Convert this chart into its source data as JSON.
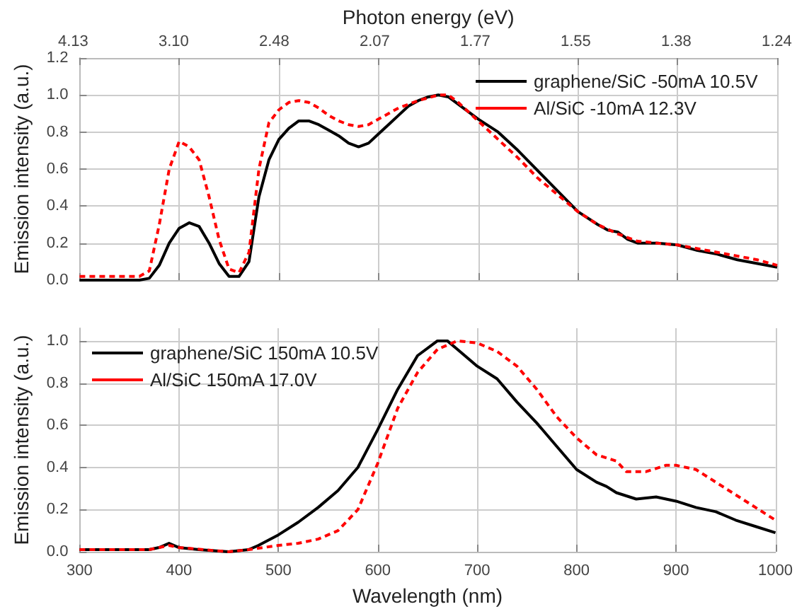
{
  "chart_data": [
    {
      "type": "line",
      "ylabel": "Emission intensity (a.u.)",
      "x2label": "Photon energy (eV)",
      "xlim": [
        300,
        1000
      ],
      "xticks": [
        300,
        400,
        500,
        600,
        700,
        800,
        900,
        1000
      ],
      "annotations": [
        "4.13",
        "3.10",
        "2.48",
        "2.07",
        "1.77",
        "1.55",
        "1.38",
        "1.24"
      ],
      "ylim": [
        0,
        1.2
      ],
      "yticks": [
        {
          "value": 0,
          "label": "0.0"
        },
        {
          "value": 0.2,
          "label": "0.2"
        },
        {
          "value": 0.4,
          "label": "0.4"
        },
        {
          "value": 0.6,
          "label": "0.6"
        },
        {
          "value": 0.8,
          "label": "0.8"
        },
        {
          "value": 1,
          "label": "1.0"
        },
        {
          "value": 1.2,
          "label": "1.2"
        }
      ],
      "tick_labels": "y",
      "grid": true,
      "legend": "top right",
      "marker": "none",
      "series": [
        {
          "name": "graphene/SiC -50mA 10.5V",
          "color": "#000000",
          "line_style": "solid",
          "x": [
            300,
            330,
            360,
            370,
            380,
            390,
            400,
            410,
            420,
            430,
            440,
            450,
            460,
            470,
            480,
            490,
            500,
            510,
            520,
            530,
            540,
            550,
            560,
            570,
            580,
            590,
            600,
            610,
            620,
            630,
            640,
            650,
            660,
            670,
            680,
            690,
            700,
            720,
            740,
            760,
            780,
            800,
            820,
            830,
            840,
            850,
            860,
            880,
            900,
            920,
            940,
            960,
            980,
            1000
          ],
          "values": [
            0.0,
            0.0,
            0.0,
            0.01,
            0.08,
            0.2,
            0.28,
            0.31,
            0.29,
            0.2,
            0.09,
            0.02,
            0.02,
            0.1,
            0.45,
            0.65,
            0.76,
            0.82,
            0.86,
            0.86,
            0.84,
            0.81,
            0.78,
            0.74,
            0.72,
            0.74,
            0.79,
            0.84,
            0.89,
            0.94,
            0.97,
            0.99,
            1.0,
            0.99,
            0.95,
            0.91,
            0.87,
            0.8,
            0.7,
            0.59,
            0.48,
            0.37,
            0.3,
            0.27,
            0.26,
            0.22,
            0.2,
            0.2,
            0.19,
            0.16,
            0.14,
            0.11,
            0.09,
            0.07
          ]
        },
        {
          "name": "Al/SiC -10mA 12.3V",
          "color": "#ff0000",
          "line_style": "dashed",
          "x": [
            300,
            330,
            360,
            370,
            380,
            390,
            400,
            410,
            420,
            430,
            440,
            450,
            460,
            470,
            480,
            490,
            500,
            510,
            520,
            530,
            540,
            550,
            560,
            570,
            580,
            590,
            600,
            620,
            640,
            660,
            670,
            680,
            700,
            720,
            740,
            760,
            780,
            800,
            820,
            840,
            860,
            880,
            900,
            920,
            940,
            960,
            980,
            1000
          ],
          "values": [
            0.02,
            0.02,
            0.02,
            0.05,
            0.3,
            0.6,
            0.75,
            0.72,
            0.65,
            0.45,
            0.22,
            0.06,
            0.04,
            0.15,
            0.6,
            0.85,
            0.92,
            0.96,
            0.97,
            0.96,
            0.93,
            0.89,
            0.86,
            0.84,
            0.83,
            0.84,
            0.87,
            0.93,
            0.97,
            1.0,
            1.0,
            0.96,
            0.86,
            0.76,
            0.66,
            0.55,
            0.46,
            0.37,
            0.3,
            0.25,
            0.21,
            0.2,
            0.19,
            0.17,
            0.15,
            0.13,
            0.11,
            0.08
          ]
        }
      ]
    },
    {
      "type": "line",
      "xlabel": "Wavelength (nm)",
      "ylabel": "Emission intensity (a.u.)",
      "xlim": [
        300,
        1000
      ],
      "xticks": [
        300,
        400,
        500,
        600,
        700,
        800,
        900,
        1000
      ],
      "ylim": [
        0,
        1.06
      ],
      "yticks": [
        {
          "value": 0,
          "label": "0.0"
        },
        {
          "value": 0.2,
          "label": "0.2"
        },
        {
          "value": 0.4,
          "label": "0.4"
        },
        {
          "value": 0.6,
          "label": "0.6"
        },
        {
          "value": 0.8,
          "label": "0.8"
        },
        {
          "value": 1,
          "label": "1.0"
        }
      ],
      "grid": true,
      "legend": "top left",
      "marker": "none",
      "series": [
        {
          "name": "graphene/SiC 150mA 10.5V",
          "color": "#000000",
          "line_style": "solid",
          "x": [
            300,
            340,
            370,
            380,
            390,
            400,
            420,
            450,
            470,
            480,
            500,
            520,
            540,
            560,
            580,
            600,
            620,
            640,
            660,
            670,
            680,
            700,
            720,
            740,
            760,
            780,
            800,
            820,
            830,
            840,
            860,
            880,
            900,
            920,
            940,
            960,
            980,
            1000
          ],
          "values": [
            0.01,
            0.01,
            0.01,
            0.02,
            0.04,
            0.02,
            0.01,
            0.0,
            0.01,
            0.03,
            0.08,
            0.14,
            0.21,
            0.29,
            0.4,
            0.58,
            0.77,
            0.93,
            1.0,
            1.0,
            0.96,
            0.88,
            0.82,
            0.71,
            0.61,
            0.5,
            0.39,
            0.33,
            0.31,
            0.28,
            0.25,
            0.26,
            0.24,
            0.21,
            0.19,
            0.15,
            0.12,
            0.09
          ]
        },
        {
          "name": "Al/SiC 150mA 17.0V",
          "color": "#ff0000",
          "line_style": "dashed",
          "x": [
            300,
            340,
            370,
            390,
            400,
            450,
            470,
            500,
            520,
            540,
            560,
            580,
            600,
            620,
            640,
            660,
            680,
            700,
            720,
            740,
            760,
            780,
            800,
            820,
            840,
            850,
            870,
            890,
            900,
            920,
            940,
            960,
            980,
            1000
          ],
          "values": [
            0.01,
            0.01,
            0.01,
            0.03,
            0.02,
            0.0,
            0.01,
            0.03,
            0.04,
            0.06,
            0.1,
            0.2,
            0.42,
            0.68,
            0.85,
            0.96,
            1.0,
            0.99,
            0.95,
            0.88,
            0.77,
            0.64,
            0.54,
            0.46,
            0.43,
            0.38,
            0.38,
            0.41,
            0.41,
            0.39,
            0.33,
            0.27,
            0.21,
            0.15
          ]
        }
      ]
    }
  ]
}
